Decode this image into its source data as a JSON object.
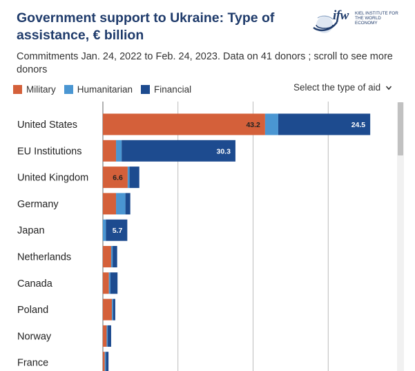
{
  "header": {
    "title": "Government support to Ukraine: Type of assistance, € billion",
    "subtitle": "Commitments Jan. 24, 2022 to Feb. 24, 2023. Data on 41 donors ; scroll to see more donors"
  },
  "logo": {
    "wordmark": "ifw",
    "institute": "KIEL INSTITUTE FOR THE WORLD ECONOMY"
  },
  "controls": {
    "dropdown_label": "Select the type of aid",
    "dropdown_icon": "chevron-down-icon"
  },
  "colors": {
    "military": "#d4603a",
    "humanitarian": "#4a96d2",
    "financial": "#1d4b8f"
  },
  "chart_data": {
    "type": "bar",
    "orientation": "horizontal",
    "stacked": true,
    "categories": [
      "United States",
      "EU Institutions",
      "United Kingdom",
      "Germany",
      "Japan",
      "Netherlands",
      "Canada",
      "Poland",
      "Norway",
      "France"
    ],
    "series": [
      {
        "name": "Military",
        "color": "#d4603a",
        "values": [
          43.2,
          3.5,
          6.6,
          3.5,
          0.0,
          2.2,
          1.6,
          2.4,
          1.0,
          0.5
        ]
      },
      {
        "name": "Humanitarian",
        "color": "#4a96d2",
        "values": [
          3.5,
          1.5,
          0.5,
          2.5,
          0.8,
          0.4,
          0.4,
          0.3,
          0.3,
          0.3
        ]
      },
      {
        "name": "Financial",
        "color": "#1d4b8f",
        "values": [
          24.5,
          30.3,
          2.6,
          1.3,
          5.7,
          1.2,
          1.9,
          0.6,
          0.9,
          0.7
        ]
      }
    ],
    "data_labels": [
      {
        "category": "United States",
        "series": "Military",
        "text": "43.2"
      },
      {
        "category": "United States",
        "series": "Financial",
        "text": "24.5"
      },
      {
        "category": "EU Institutions",
        "series": "Financial",
        "text": "30.3"
      },
      {
        "category": "United Kingdom",
        "series": "Military",
        "text": "6.6"
      },
      {
        "category": "Japan",
        "series": "Financial",
        "text": "5.7"
      }
    ],
    "xlim": [
      0,
      80
    ],
    "grid_lines_at": [
      20,
      40,
      60,
      80
    ],
    "legend": "top-left",
    "grid": true
  }
}
